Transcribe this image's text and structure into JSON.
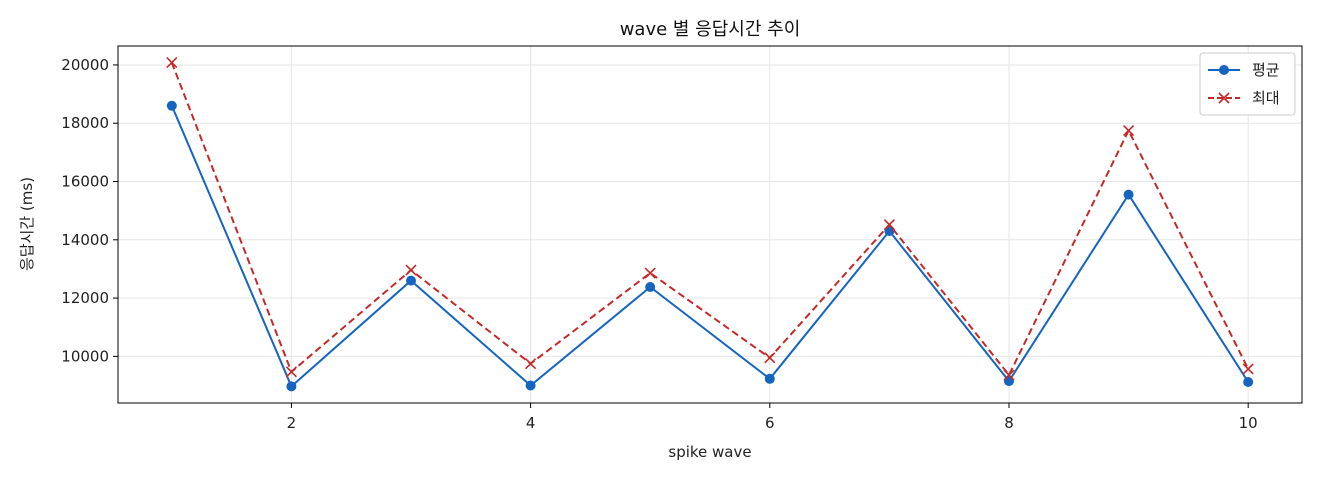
{
  "chart_data": {
    "type": "line",
    "title": "wave 별 응답시간 추이",
    "xlabel": "spike wave",
    "ylabel": "응답시간 (ms)",
    "x": [
      1,
      2,
      3,
      4,
      5,
      6,
      7,
      8,
      9,
      10
    ],
    "xlim": [
      0.55,
      10.45
    ],
    "ylim": [
      8400,
      20650
    ],
    "xticks": [
      2,
      4,
      6,
      8,
      10
    ],
    "yticks": [
      10000,
      12000,
      14000,
      16000,
      18000,
      20000
    ],
    "grid": true,
    "legend_position": "top-right",
    "series": [
      {
        "name": "평균",
        "color": "#1565c0",
        "line_style": "solid",
        "marker": "circle",
        "values": [
          18600,
          8970,
          12600,
          9000,
          12380,
          9230,
          14300,
          9150,
          15550,
          9120
        ]
      },
      {
        "name": "최대",
        "color": "#c62828",
        "line_style": "dashed",
        "marker": "x",
        "values": [
          20080,
          9470,
          12960,
          9750,
          12860,
          9950,
          14520,
          9360,
          17750,
          9570
        ]
      }
    ]
  }
}
